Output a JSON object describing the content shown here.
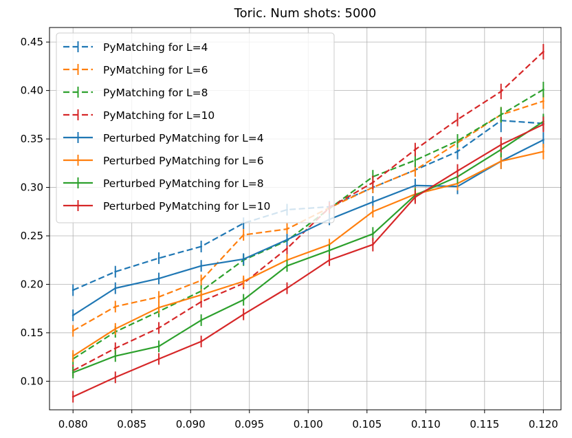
{
  "chart_data": {
    "type": "line",
    "title": "Toric. Num shots: 5000",
    "xlabel": "",
    "ylabel": "",
    "xlim": [
      0.078,
      0.1215
    ],
    "ylim": [
      0.0705,
      0.465
    ],
    "grid": true,
    "legend_position": "upper-left",
    "x": [
      0.08,
      0.0836,
      0.0873,
      0.0909,
      0.0945,
      0.0982,
      0.1018,
      0.1055,
      0.1091,
      0.1127,
      0.1164,
      0.12
    ],
    "x_ticks": [
      0.08,
      0.085,
      0.09,
      0.095,
      0.1,
      0.105,
      0.11,
      0.115,
      0.12
    ],
    "x_tick_labels": [
      "0.080",
      "0.085",
      "0.090",
      "0.095",
      "0.100",
      "0.105",
      "0.110",
      "0.115",
      "0.120"
    ],
    "y_ticks": [
      0.1,
      0.15,
      0.2,
      0.25,
      0.3,
      0.35,
      0.4,
      0.45
    ],
    "y_tick_labels": [
      "0.10",
      "0.15",
      "0.20",
      "0.25",
      "0.30",
      "0.35",
      "0.40",
      "0.45"
    ],
    "series": [
      {
        "name": "PyMatching for L=4",
        "color": "#1f77b4",
        "dashed": true,
        "values": [
          0.194,
          0.213,
          0.227,
          0.239,
          0.263,
          0.277,
          0.28,
          0.3,
          0.318,
          0.337,
          0.369,
          0.366
        ],
        "errors": [
          0.006,
          0.006,
          0.006,
          0.006,
          0.006,
          0.006,
          0.006,
          0.006,
          0.007,
          0.008,
          0.012,
          0.008
        ]
      },
      {
        "name": "PyMatching for L=6",
        "color": "#ff7f0e",
        "dashed": true,
        "values": [
          0.152,
          0.177,
          0.187,
          0.204,
          0.251,
          0.257,
          0.279,
          0.3,
          0.318,
          0.346,
          0.375,
          0.389
        ],
        "errors": [
          0.006,
          0.006,
          0.006,
          0.006,
          0.006,
          0.006,
          0.006,
          0.006,
          0.007,
          0.007,
          0.008,
          0.008
        ]
      },
      {
        "name": "PyMatching for L=8",
        "color": "#2ca02c",
        "dashed": true,
        "values": [
          0.123,
          0.151,
          0.172,
          0.193,
          0.225,
          0.245,
          0.278,
          0.311,
          0.328,
          0.348,
          0.375,
          0.401
        ],
        "errors": [
          0.006,
          0.006,
          0.006,
          0.006,
          0.006,
          0.006,
          0.006,
          0.007,
          0.007,
          0.007,
          0.008,
          0.008
        ]
      },
      {
        "name": "PyMatching for L=10",
        "color": "#d62728",
        "dashed": true,
        "values": [
          0.111,
          0.134,
          0.155,
          0.182,
          0.201,
          0.237,
          0.279,
          0.305,
          0.339,
          0.37,
          0.399,
          0.44
        ],
        "errors": [
          0.006,
          0.006,
          0.006,
          0.006,
          0.006,
          0.006,
          0.006,
          0.007,
          0.007,
          0.007,
          0.008,
          0.008
        ]
      },
      {
        "name": "Perturbed PyMatching for L=4",
        "color": "#1f77b4",
        "dashed": false,
        "values": [
          0.168,
          0.196,
          0.206,
          0.219,
          0.226,
          0.246,
          0.267,
          0.285,
          0.302,
          0.301,
          0.327,
          0.349
        ],
        "errors": [
          0.006,
          0.006,
          0.006,
          0.006,
          0.006,
          0.006,
          0.006,
          0.006,
          0.007,
          0.008,
          0.008,
          0.008
        ]
      },
      {
        "name": "Perturbed PyMatching for L=6",
        "color": "#ff7f0e",
        "dashed": false,
        "values": [
          0.126,
          0.154,
          0.176,
          0.189,
          0.203,
          0.225,
          0.241,
          0.275,
          0.293,
          0.304,
          0.327,
          0.337
        ],
        "errors": [
          0.006,
          0.006,
          0.006,
          0.006,
          0.006,
          0.006,
          0.006,
          0.006,
          0.007,
          0.007,
          0.008,
          0.008
        ]
      },
      {
        "name": "Perturbed PyMatching for L=8",
        "color": "#2ca02c",
        "dashed": false,
        "values": [
          0.109,
          0.126,
          0.136,
          0.163,
          0.184,
          0.219,
          0.235,
          0.252,
          0.292,
          0.311,
          0.339,
          0.368
        ],
        "errors": [
          0.006,
          0.006,
          0.006,
          0.006,
          0.006,
          0.006,
          0.006,
          0.007,
          0.007,
          0.007,
          0.008,
          0.008
        ]
      },
      {
        "name": "Perturbed PyMatching for L=10",
        "color": "#d62728",
        "dashed": false,
        "values": [
          0.084,
          0.104,
          0.123,
          0.141,
          0.169,
          0.196,
          0.225,
          0.241,
          0.29,
          0.317,
          0.344,
          0.365
        ],
        "errors": [
          0.006,
          0.006,
          0.006,
          0.006,
          0.006,
          0.006,
          0.006,
          0.007,
          0.007,
          0.007,
          0.008,
          0.008
        ]
      }
    ]
  }
}
